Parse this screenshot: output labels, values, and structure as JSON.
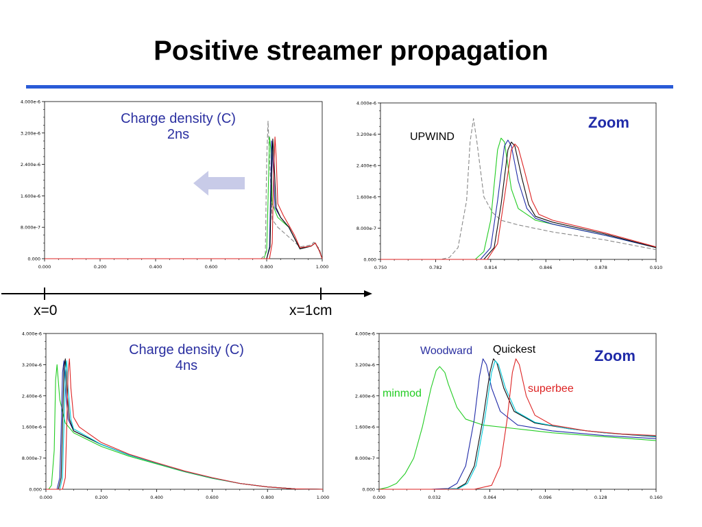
{
  "slide": {
    "title": "Positive streamer propagation",
    "axis_start_label": "x=0",
    "axis_end_label": "x=1cm"
  },
  "colors": {
    "title_rule": "#2a5bd7",
    "annotation_blue": "#2a2fa0",
    "arrow_fill": "#c8cbe8"
  },
  "icons": {
    "direction_arrow": "left-arrow-icon"
  },
  "chart_data": [
    {
      "type": "line",
      "annotation_lines": [
        "Charge density (C)",
        "2ns"
      ],
      "xlim": [
        0,
        1
      ],
      "ylim": [
        0,
        4e-06
      ],
      "xtick_labels": [
        "0.000",
        "0.200",
        "0.400",
        "0.600",
        "0.800",
        "1.000"
      ],
      "ytick_labels": [
        "0.000",
        "8.000e-7",
        "1.600e-6",
        "2.400e-6",
        "3.200e-6",
        "4.000e-6"
      ],
      "series": [
        {
          "color": "#888888",
          "dash": "6,3",
          "x": [
            0,
            0.78,
            0.795,
            0.8,
            0.805,
            0.81,
            0.82,
            0.84,
            0.88,
            0.92,
            0.96,
            0.97,
            0.99,
            1.0
          ],
          "y": [
            0,
            0,
            1e-07,
            2.5e-06,
            3.5e-06,
            2.6e-06,
            1e-06,
            8e-07,
            5.5e-07,
            3e-07,
            3.5e-07,
            4.2e-07,
            2.5e-07,
            0
          ]
        },
        {
          "color": "#22cc22",
          "dash": "",
          "x": [
            0,
            0.79,
            0.8,
            0.805,
            0.81,
            0.815,
            0.82,
            0.84,
            0.88,
            0.92,
            0.96,
            0.975,
            0.99,
            1.0
          ],
          "y": [
            0,
            0,
            2e-07,
            1.5e-06,
            3.1e-06,
            2.8e-06,
            1.4e-06,
            1.05e-06,
            8e-07,
            2.5e-07,
            3.2e-07,
            4e-07,
            2e-07,
            0
          ]
        },
        {
          "color": "#1f2aa8",
          "dash": "",
          "x": [
            0,
            0.8,
            0.81,
            0.815,
            0.818,
            0.822,
            0.83,
            0.85,
            0.88,
            0.92,
            0.96,
            0.975,
            0.99,
            1.0
          ],
          "y": [
            0,
            0,
            3e-07,
            2e-06,
            3e-06,
            2.6e-06,
            1.3e-06,
            1.05e-06,
            8e-07,
            2.5e-07,
            3.2e-07,
            4e-07,
            2e-07,
            0
          ]
        },
        {
          "color": "#0a0a0a",
          "dash": "",
          "x": [
            0,
            0.8,
            0.812,
            0.818,
            0.822,
            0.826,
            0.834,
            0.85,
            0.88,
            0.92,
            0.96,
            0.975,
            0.99,
            1.0
          ],
          "y": [
            0,
            0,
            3e-07,
            2.2e-06,
            3.05e-06,
            2.6e-06,
            1.3e-06,
            1.05e-06,
            8e-07,
            2.5e-07,
            3.2e-07,
            4e-07,
            2e-07,
            0
          ]
        },
        {
          "color": "#dd2222",
          "dash": "",
          "x": [
            0,
            0.81,
            0.82,
            0.826,
            0.83,
            0.834,
            0.84,
            0.86,
            0.88,
            0.9,
            0.92,
            0.96,
            0.975,
            0.99,
            1.0
          ],
          "y": [
            0,
            0,
            4e-07,
            2.4e-06,
            3.1e-06,
            2.6e-06,
            1.4e-06,
            1.1e-06,
            8.5e-07,
            6e-07,
            2.8e-07,
            3.2e-07,
            4e-07,
            2e-07,
            0
          ]
        }
      ]
    },
    {
      "type": "line",
      "annotation": "Zoom",
      "series_label": "UPWIND",
      "xlim": [
        0.75,
        0.91
      ],
      "ylim": [
        0,
        4e-06
      ],
      "xtick_labels": [
        "0.750",
        "0.782",
        "0.814",
        "0.846",
        "0.878",
        "0.910"
      ],
      "ytick_labels": [
        "0.000",
        "8.000e-7",
        "1.600e-6",
        "2.400e-6",
        "3.200e-6",
        "4.000e-6"
      ],
      "series": [
        {
          "color": "#888888",
          "dash": "6,3",
          "x": [
            0.75,
            0.785,
            0.79,
            0.795,
            0.8,
            0.802,
            0.804,
            0.806,
            0.81,
            0.815,
            0.82,
            0.83,
            0.85,
            0.88,
            0.91
          ],
          "y": [
            0,
            0,
            5e-08,
            3e-07,
            1.5e-06,
            3e-06,
            3.6e-06,
            3e-06,
            1.6e-06,
            1.2e-06,
            1e-06,
            8.8e-07,
            7e-07,
            5e-07,
            2.5e-07
          ]
        },
        {
          "color": "#22cc22",
          "dash": "",
          "x": [
            0.75,
            0.805,
            0.81,
            0.814,
            0.818,
            0.82,
            0.822,
            0.826,
            0.83,
            0.84,
            0.85,
            0.88,
            0.91
          ],
          "y": [
            0,
            0,
            2e-07,
            1e-06,
            2.8e-06,
            3.1e-06,
            3e-06,
            1.8e-06,
            1.3e-06,
            1e-06,
            9e-07,
            6.2e-07,
            3e-07
          ]
        },
        {
          "color": "#1f2aa8",
          "dash": "",
          "x": [
            0.75,
            0.808,
            0.814,
            0.818,
            0.822,
            0.824,
            0.826,
            0.83,
            0.835,
            0.84,
            0.85,
            0.88,
            0.91
          ],
          "y": [
            0,
            0,
            3e-07,
            1.5e-06,
            2.9e-06,
            3.05e-06,
            2.9e-06,
            2e-06,
            1.3e-06,
            1.05e-06,
            9e-07,
            6.2e-07,
            3e-07
          ]
        },
        {
          "color": "#0a0a0a",
          "dash": "",
          "x": [
            0.75,
            0.81,
            0.816,
            0.82,
            0.824,
            0.826,
            0.828,
            0.832,
            0.836,
            0.84,
            0.85,
            0.88,
            0.91
          ],
          "y": [
            0,
            0,
            3e-07,
            1.4e-06,
            2.8e-06,
            3e-06,
            2.9e-06,
            2.1e-06,
            1.4e-06,
            1.1e-06,
            9.5e-07,
            6.5e-07,
            3e-07
          ]
        },
        {
          "color": "#dd2222",
          "dash": "",
          "x": [
            0.75,
            0.812,
            0.818,
            0.822,
            0.826,
            0.828,
            0.83,
            0.834,
            0.838,
            0.842,
            0.85,
            0.88,
            0.91
          ],
          "y": [
            0,
            0,
            4e-07,
            1.6e-06,
            2.8e-06,
            2.95e-06,
            2.85e-06,
            2.2e-06,
            1.5e-06,
            1.15e-06,
            1e-06,
            6.8e-07,
            3.2e-07
          ]
        }
      ]
    },
    {
      "type": "line",
      "annotation_lines": [
        "Charge density (C)",
        "4ns"
      ],
      "xlim": [
        0,
        1
      ],
      "ylim": [
        0,
        4e-06
      ],
      "xtick_labels": [
        "0.000",
        "0.200",
        "0.400",
        "0.600",
        "0.800",
        "1.000"
      ],
      "ytick_labels": [
        "0.000",
        "8.000e-7",
        "1.600e-6",
        "2.400e-6",
        "3.200e-6",
        "4.000e-6"
      ],
      "series": [
        {
          "color": "#22cc22",
          "dash": "",
          "x": [
            0,
            0.01,
            0.02,
            0.03,
            0.035,
            0.04,
            0.05,
            0.07,
            0.1,
            0.2,
            0.3,
            0.4,
            0.5,
            0.6,
            0.7,
            0.8,
            0.9,
            1.0
          ],
          "y": [
            0,
            0,
            1e-07,
            1e-06,
            2.8e-06,
            3.2e-06,
            2.3e-06,
            1.7e-06,
            1.45e-06,
            1.1e-06,
            8.5e-07,
            6.5e-07,
            4.5e-07,
            2.8e-07,
            1.5e-07,
            6e-08,
            1e-08,
            0
          ]
        },
        {
          "color": "#1f2aa8",
          "dash": "",
          "x": [
            0,
            0.04,
            0.05,
            0.055,
            0.06,
            0.065,
            0.07,
            0.08,
            0.1,
            0.2,
            0.3,
            0.4,
            0.5,
            0.6,
            0.7,
            0.8,
            0.9,
            1.0
          ],
          "y": [
            0,
            0,
            3e-07,
            1.5e-06,
            3e-06,
            3.3e-06,
            2.6e-06,
            1.8e-06,
            1.5e-06,
            1.15e-06,
            8.8e-07,
            6.7e-07,
            4.6e-07,
            2.9e-07,
            1.5e-07,
            6e-08,
            1e-08,
            0
          ]
        },
        {
          "color": "#0a0a0a",
          "dash": "",
          "x": [
            0,
            0.045,
            0.055,
            0.06,
            0.065,
            0.07,
            0.075,
            0.085,
            0.1,
            0.2,
            0.3,
            0.4,
            0.5,
            0.6,
            0.7,
            0.8,
            0.9,
            1.0
          ],
          "y": [
            0,
            0,
            3e-07,
            1.6e-06,
            3.1e-06,
            3.35e-06,
            2.6e-06,
            1.8e-06,
            1.5e-06,
            1.15e-06,
            8.8e-07,
            6.7e-07,
            4.6e-07,
            2.9e-07,
            1.5e-07,
            6e-08,
            1e-08,
            0
          ]
        },
        {
          "color": "#00c8d8",
          "dash": "",
          "x": [
            0,
            0.05,
            0.06,
            0.065,
            0.07,
            0.075,
            0.08,
            0.09,
            0.1,
            0.2,
            0.3,
            0.4,
            0.5,
            0.6,
            0.7,
            0.8,
            0.9,
            1.0
          ],
          "y": [
            0,
            0,
            3e-07,
            1.6e-06,
            3e-06,
            3.3e-06,
            2.6e-06,
            1.8e-06,
            1.55e-06,
            1.15e-06,
            8.8e-07,
            6.7e-07,
            4.6e-07,
            2.9e-07,
            1.5e-07,
            6e-08,
            1e-08,
            0
          ]
        },
        {
          "color": "#dd2222",
          "dash": "",
          "x": [
            0,
            0.06,
            0.07,
            0.075,
            0.08,
            0.085,
            0.09,
            0.1,
            0.12,
            0.2,
            0.3,
            0.4,
            0.5,
            0.6,
            0.7,
            0.8,
            0.9,
            1.0
          ],
          "y": [
            0,
            0,
            3e-07,
            1.6e-06,
            3e-06,
            3.35e-06,
            2.6e-06,
            1.85e-06,
            1.6e-06,
            1.2e-06,
            9e-07,
            6.8e-07,
            4.7e-07,
            3e-07,
            1.5e-07,
            6e-08,
            1e-08,
            0
          ]
        }
      ]
    },
    {
      "type": "line",
      "annotation": "Zoom",
      "series_labels": {
        "minmod": "minmod",
        "woodward": "Woodward",
        "quickest": "Quickest",
        "superbee": "superbee"
      },
      "xlim": [
        0,
        0.16
      ],
      "ylim": [
        0,
        4e-06
      ],
      "xtick_labels": [
        "0.000",
        "0.032",
        "0.064",
        "0.096",
        "0.128",
        "0.160"
      ],
      "ytick_labels": [
        "0.000",
        "8.000e-7",
        "1.600e-6",
        "2.400e-6",
        "3.200e-6",
        "4.000e-6"
      ],
      "series": [
        {
          "name": "minmod",
          "color": "#22cc22",
          "dash": "",
          "x": [
            0,
            0.005,
            0.01,
            0.015,
            0.02,
            0.025,
            0.03,
            0.033,
            0.035,
            0.038,
            0.04,
            0.045,
            0.05,
            0.06,
            0.08,
            0.1,
            0.13,
            0.16
          ],
          "y": [
            0,
            5e-08,
            1.5e-07,
            4e-07,
            8e-07,
            1.6e-06,
            2.6e-06,
            3.05e-06,
            3.15e-06,
            3e-06,
            2.7e-06,
            2.1e-06,
            1.8e-06,
            1.65e-06,
            1.55e-06,
            1.45e-06,
            1.35e-06,
            1.25e-06
          ]
        },
        {
          "name": "Woodward",
          "color": "#1f2aa8",
          "dash": "",
          "x": [
            0,
            0.03,
            0.04,
            0.045,
            0.05,
            0.055,
            0.058,
            0.06,
            0.062,
            0.065,
            0.07,
            0.08,
            0.1,
            0.13,
            0.16
          ],
          "y": [
            0,
            0,
            2e-08,
            1.5e-07,
            6e-07,
            1.8e-06,
            2.9e-06,
            3.35e-06,
            3.2e-06,
            2.6e-06,
            2e-06,
            1.65e-06,
            1.5e-06,
            1.38e-06,
            1.3e-06
          ]
        },
        {
          "name": "Quickest",
          "color": "#0a0a0a",
          "dash": "",
          "x": [
            0,
            0.035,
            0.045,
            0.05,
            0.055,
            0.06,
            0.064,
            0.066,
            0.068,
            0.072,
            0.078,
            0.09,
            0.11,
            0.13,
            0.16
          ],
          "y": [
            0,
            0,
            2e-08,
            1.5e-07,
            6e-07,
            1.8e-06,
            3e-06,
            3.35e-06,
            3.25e-06,
            2.6e-06,
            2e-06,
            1.7e-06,
            1.55e-06,
            1.45e-06,
            1.35e-06
          ]
        },
        {
          "name": "",
          "color": "#00c8d8",
          "dash": "",
          "x": [
            0,
            0.036,
            0.046,
            0.051,
            0.056,
            0.061,
            0.065,
            0.067,
            0.069,
            0.073,
            0.079,
            0.09,
            0.11,
            0.13,
            0.16
          ],
          "y": [
            0,
            0,
            2e-08,
            1.5e-07,
            6e-07,
            1.8e-06,
            3e-06,
            3.3e-06,
            3.2e-06,
            2.6e-06,
            2e-06,
            1.72e-06,
            1.55e-06,
            1.45e-06,
            1.36e-06
          ]
        },
        {
          "name": "superbee",
          "color": "#dd2222",
          "dash": "",
          "x": [
            0,
            0.055,
            0.065,
            0.07,
            0.074,
            0.077,
            0.079,
            0.081,
            0.085,
            0.09,
            0.1,
            0.12,
            0.14,
            0.16
          ],
          "y": [
            0,
            0,
            1e-07,
            6e-07,
            1.8e-06,
            3e-06,
            3.35e-06,
            3.2e-06,
            2.4e-06,
            1.9e-06,
            1.65e-06,
            1.5e-06,
            1.42e-06,
            1.38e-06
          ]
        }
      ]
    }
  ]
}
